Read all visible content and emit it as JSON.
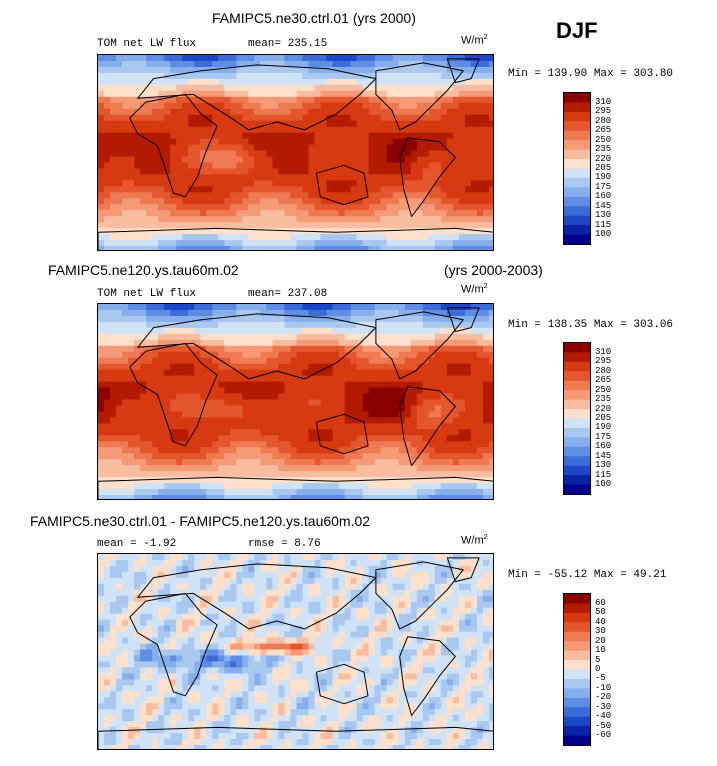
{
  "season": "DJF",
  "chart_data": [
    {
      "type": "heatmap",
      "title": "FAMIPC5.ne30.ctrl.01 (yrs 2000)",
      "variable": "TOM net LW flux",
      "mean_text": "mean= 235.15",
      "units": "W/m",
      "units_exp": "2",
      "minmax_text": "Min = 139.90 Max = 303.80",
      "min": 139.9,
      "max": 303.8,
      "mean": 235.15,
      "colorbar_levels": [
        "310",
        "295",
        "280",
        "265",
        "250",
        "235",
        "220",
        "205",
        "190",
        "175",
        "160",
        "145",
        "130",
        "115",
        "100"
      ],
      "colors": [
        "#8b0000",
        "#b31b00",
        "#d73a10",
        "#e4572e",
        "#ef7a52",
        "#f49a77",
        "#f8bc9e",
        "#fde0cc",
        "#cfe2f6",
        "#a9c8f0",
        "#86aeeb",
        "#5f8de3",
        "#3d6cd9",
        "#1f46c7",
        "#0a22a6",
        "#00008b"
      ]
    },
    {
      "type": "heatmap",
      "title_left": "FAMIPC5.ne120.ys.tau60m.02",
      "title_right": "(yrs 2000-2003)",
      "variable": "TOM net LW flux",
      "mean_text": "mean= 237.08",
      "units": "W/m",
      "units_exp": "2",
      "minmax_text": "Min = 138.35 Max = 303.06",
      "min": 138.35,
      "max": 303.06,
      "mean": 237.08,
      "colorbar_levels": [
        "310",
        "295",
        "280",
        "265",
        "250",
        "235",
        "220",
        "205",
        "190",
        "175",
        "160",
        "145",
        "130",
        "115",
        "100"
      ],
      "colors": [
        "#8b0000",
        "#b31b00",
        "#d73a10",
        "#e4572e",
        "#ef7a52",
        "#f49a77",
        "#f8bc9e",
        "#fde0cc",
        "#cfe2f6",
        "#a9c8f0",
        "#86aeeb",
        "#5f8de3",
        "#3d6cd9",
        "#1f46c7",
        "#0a22a6",
        "#00008b"
      ]
    },
    {
      "type": "heatmap",
      "title": "FAMIPC5.ne30.ctrl.01 - FAMIPC5.ne120.ys.tau60m.02",
      "mean_text": "mean =  -1.92",
      "rmse_text": "rmse =   8.76",
      "units": "W/m",
      "units_exp": "2",
      "minmax_text": "Min = -55.12 Max =  49.21",
      "min": -55.12,
      "max": 49.21,
      "mean": -1.92,
      "rmse": 8.76,
      "colorbar_levels": [
        "60",
        "50",
        "40",
        "30",
        "20",
        "10",
        "5",
        "0",
        "-5",
        "-10",
        "-20",
        "-30",
        "-40",
        "-50",
        "-60"
      ],
      "colors": [
        "#8b0000",
        "#b31b00",
        "#d73a10",
        "#e4572e",
        "#ef7a52",
        "#f49a77",
        "#f8bc9e",
        "#fde0cc",
        "#cfe2f6",
        "#a9c8f0",
        "#86aeeb",
        "#5f8de3",
        "#3d6cd9",
        "#1f46c7",
        "#0a22a6",
        "#00008b"
      ]
    }
  ]
}
